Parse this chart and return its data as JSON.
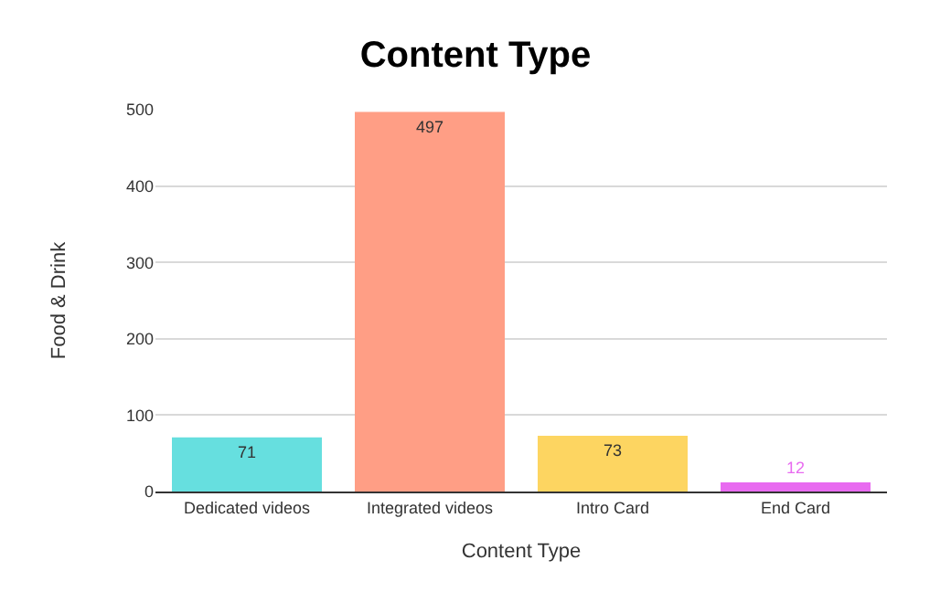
{
  "chart_data": {
    "type": "bar",
    "title": "Content Type",
    "xlabel": "Content Type",
    "ylabel": "Food & Drink",
    "categories": [
      "Dedicated videos",
      "Integrated videos",
      "Intro Card",
      "End Card"
    ],
    "values": [
      71,
      497,
      73,
      12
    ],
    "colors": [
      "#66dfdf",
      "#ff9e85",
      "#fdd561",
      "#e86bf0"
    ],
    "ylim": [
      0,
      500
    ],
    "yticks": [
      0,
      100,
      200,
      300,
      400,
      500
    ],
    "grid": "y",
    "data_labels": true,
    "legend": false
  }
}
